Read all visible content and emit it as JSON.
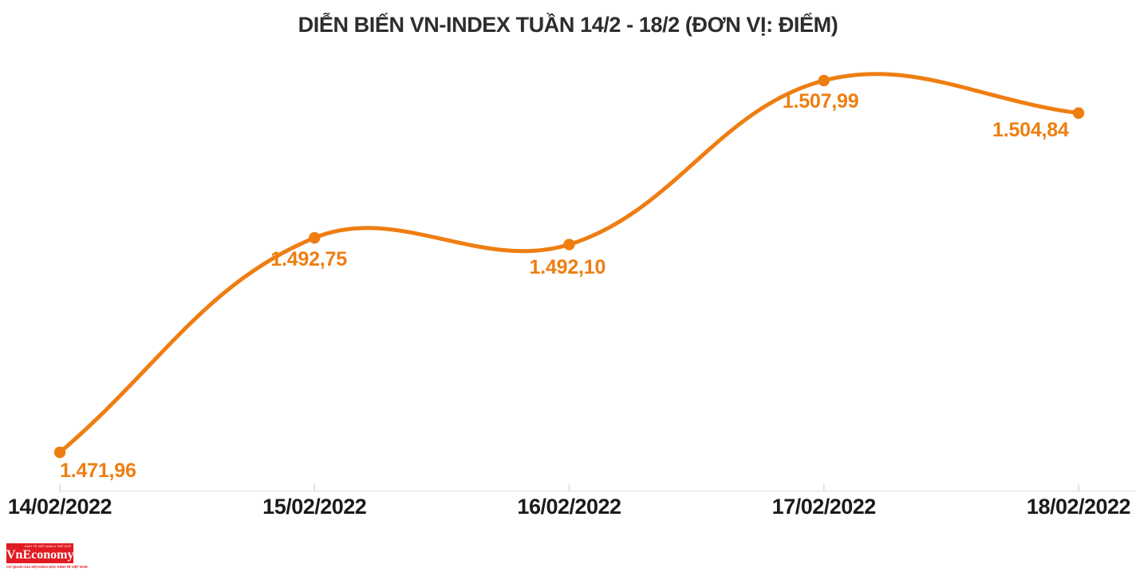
{
  "title": "DIỄN BIẾN VN-INDEX TUẦN 14/2 - 18/2 (ĐƠN VỊ: ĐIỂM)",
  "chart_data": {
    "type": "line",
    "title": "DIỄN BIẾN VN-INDEX TUẦN 14/2 - 18/2 (ĐƠN VỊ: ĐIỂM)",
    "categories": [
      "14/02/2022",
      "15/02/2022",
      "16/02/2022",
      "17/02/2022",
      "18/02/2022"
    ],
    "series": [
      {
        "name": "VN-INDEX",
        "values": [
          1471.96,
          1492.75,
          1492.1,
          1507.99,
          1504.84
        ],
        "value_labels": [
          "1.471,96",
          "1.492,75",
          "1.492,10",
          "1.507,99",
          "1.504,84"
        ]
      }
    ],
    "xlabel": "",
    "ylabel": "",
    "unit": "ĐIỂM",
    "ylim": [
      1466,
      1512
    ],
    "grid": "off",
    "legend": "none",
    "marker": "circle",
    "curve": "smooth-spline"
  },
  "colors": {
    "line": "#ee7e12",
    "marker": "#ee7e12",
    "value_label": "#ee7e12",
    "title": "#2d2d2d",
    "date_label": "#1b1b1b",
    "axis": "#e6e6e6",
    "tick": "#d9d9d9",
    "background": "#ffffff",
    "logo_red": "#e11b22"
  },
  "logo": {
    "wordmark": "VnEconomy",
    "small_top_text": "KINH TẾ VIỆT NAM & THẾ GIỚI",
    "tagline": "CƠ QUAN CỦA HỘI KHOA HỌC KINH TẾ VIỆT NAM"
  }
}
